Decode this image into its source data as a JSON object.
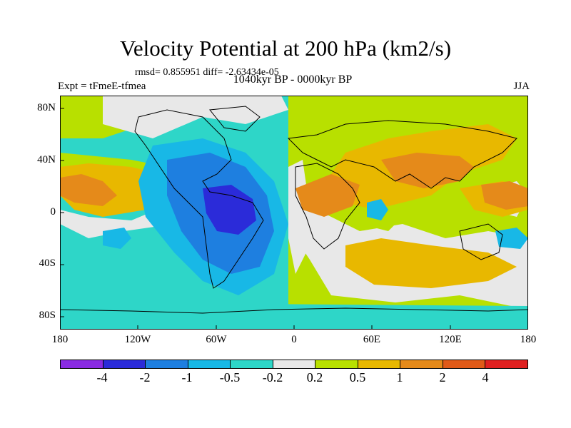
{
  "title": "Velocity Potential at 200 hPa (km2/s)",
  "stats": "rmsd= 0.855951 diff= -2.63434e-05",
  "left_label": "Expt = tFmeE-tfmea",
  "center_label": "1040kyr BP - 0000kyr BP",
  "right_label": "JJA",
  "lat_ticks": [
    "80N",
    "40N",
    "0",
    "40S",
    "80S"
  ],
  "lon_ticks": [
    "180",
    "120W",
    "60W",
    "0",
    "60E",
    "120E",
    "180"
  ],
  "legend": {
    "colors": [
      "#8a2be2",
      "#2b2bd9",
      "#1e7fe0",
      "#18b8e6",
      "#2ed6c8",
      "#e8e8e8",
      "#b8e000",
      "#e8b800",
      "#e58a1a",
      "#e05a18",
      "#e02020"
    ],
    "labels": [
      "-4",
      "-2",
      "-1",
      "-0.5",
      "-0.2",
      "0.2",
      "0.5",
      "1",
      "2",
      "4"
    ]
  },
  "colors": {
    "teal": "#2ed6c8",
    "light_blue": "#18b8e6",
    "mid_blue": "#1e7fe0",
    "dark_blue": "#2b2bd9",
    "neutral": "#e8e8e8",
    "yellow_green": "#b8e000",
    "gold": "#e8b800",
    "orange": "#e58a1a"
  }
}
